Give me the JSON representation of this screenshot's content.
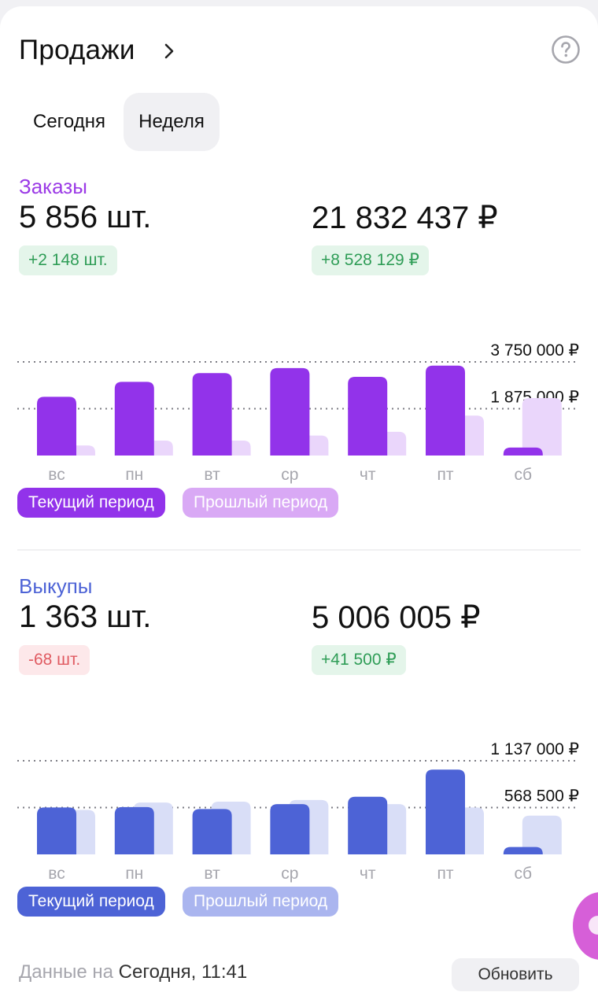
{
  "header": {
    "title": "Продажи",
    "chevron_icon": "chevron-right-icon",
    "help_icon": "help-circle-icon"
  },
  "tabs": [
    {
      "label": "Сегодня",
      "active": false
    },
    {
      "label": "Неделя",
      "active": true
    }
  ],
  "orders": {
    "title": "Заказы",
    "title_color": "#9b3ae6",
    "count": "5 856 шт.",
    "count_delta": "+2 148 шт.",
    "amount": "21 832 437 ₽",
    "amount_delta": "+8 528 129 ₽"
  },
  "redemptions": {
    "title": "Выкупы",
    "title_color": "#4d63d6",
    "count": "1 363 шт.",
    "count_delta": "-68 шт.",
    "amount": "5 006 005 ₽",
    "amount_delta": "+41 500 ₽"
  },
  "chart_data": [
    {
      "type": "bar",
      "categories": [
        "вс",
        "пн",
        "вт",
        "ср",
        "чт",
        "пт",
        "сб"
      ],
      "series": [
        {
          "name": "Текущий период",
          "color": "#9233ea",
          "values": [
            2350000,
            2950000,
            3300000,
            3500000,
            3150000,
            3600000,
            320000
          ]
        },
        {
          "name": "Прошлый период",
          "color": "#ead6fb",
          "values": [
            400000,
            600000,
            600000,
            800000,
            950000,
            1600000,
            2300000
          ]
        }
      ],
      "yticks": [
        1875000,
        3750000
      ],
      "ytick_labels": [
        "1 875 000 ₽",
        "3 750 000 ₽"
      ],
      "ylim": [
        0,
        3750000
      ],
      "grid": "dotted",
      "legend": "bottom-left"
    },
    {
      "type": "bar",
      "categories": [
        "вс",
        "пн",
        "вт",
        "ср",
        "чт",
        "пт",
        "сб"
      ],
      "series": [
        {
          "name": "Текущий период",
          "color": "#4d63d6",
          "values": [
            570000,
            575000,
            550000,
            610000,
            700000,
            1030000,
            90000
          ]
        },
        {
          "name": "Прошлый период",
          "color": "#d9def7",
          "values": [
            540000,
            630000,
            640000,
            660000,
            610000,
            570000,
            470000
          ]
        }
      ],
      "yticks": [
        568500,
        1137000
      ],
      "ytick_labels": [
        "568 500 ₽",
        "1 137 000 ₽"
      ],
      "ylim": [
        0,
        1137000
      ],
      "grid": "dotted",
      "legend": "bottom-left"
    }
  ],
  "footer": {
    "label": "Данные на",
    "value": "Сегодня, 11:41",
    "refresh_label": "Обновить"
  }
}
